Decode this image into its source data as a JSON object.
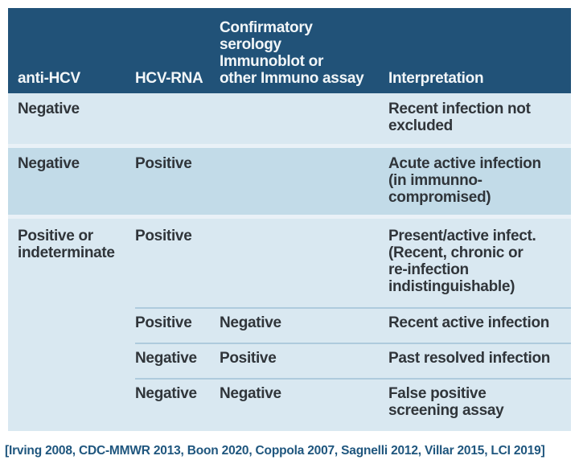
{
  "colors": {
    "header_bg": "#215278",
    "header_text": "#f2f6f8",
    "row_light_bg": "#d9e8f1",
    "row_dark_bg": "#c2dbe8",
    "row_divider": "#e9f1f7",
    "sub_row_line": "#aecbdd",
    "body_text": "#30353a",
    "citation_text": "#1f567e"
  },
  "table": {
    "headers": [
      "anti-HCV",
      "HCV-RNA",
      "Confirmatory\nserology\nImmunoblot or\nother Immuno assay",
      "Interpretation"
    ],
    "rows": [
      {
        "anti_hcv": "Negative",
        "hcv_rna": "",
        "confirmatory": "",
        "interpretation": "Recent infection not\nexcluded"
      },
      {
        "anti_hcv": "Negative",
        "hcv_rna": "Positive",
        "confirmatory": "",
        "interpretation": "Acute active infection\n(in immunno-\ncompromised)"
      },
      {
        "anti_hcv": "Positive or\nindeterminate",
        "hcv_rna": "Positive",
        "confirmatory": "",
        "interpretation": "Present/active infect.\n(Recent, chronic or\nre-infection\nindistinguishable)"
      },
      {
        "anti_hcv": "",
        "hcv_rna": "Positive",
        "confirmatory": "Negative",
        "interpretation": "Recent active infection"
      },
      {
        "anti_hcv": "",
        "hcv_rna": "Negative",
        "confirmatory": "Positive",
        "interpretation": "Past resolved infection"
      },
      {
        "anti_hcv": "",
        "hcv_rna": "Negative",
        "confirmatory": "Negative",
        "interpretation": "False positive\nscreening assay"
      }
    ]
  },
  "citation": "[Irving 2008, CDC-MMWR 2013, Boon 2020, Coppola 2007, Sagnelli 2012, Villar 2015, LCI 2019]"
}
